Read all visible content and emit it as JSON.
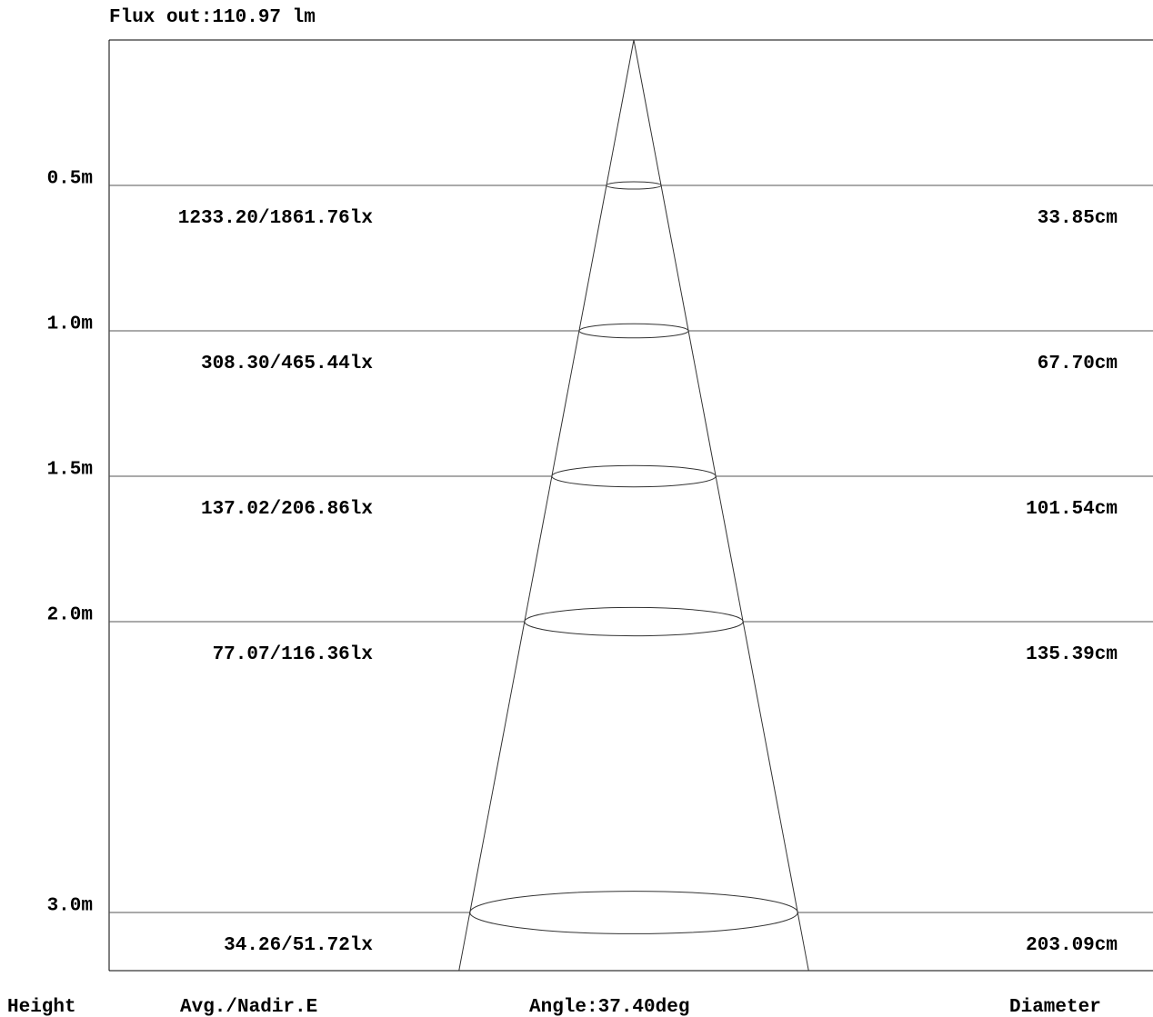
{
  "flux_label": "Flux out:110.97 lm",
  "footer": {
    "height_label": "Height",
    "illuminance_label": "Avg./Nadir.E",
    "angle_label": "Angle:37.40deg",
    "diameter_label": "Diameter"
  },
  "beam_angle_deg": 37.4,
  "levels": [
    {
      "height_m": 0.5,
      "height_label": "0.5m",
      "illuminance": "1233.20/1861.76lx",
      "diameter": "33.85cm",
      "diameter_cm": 33.85
    },
    {
      "height_m": 1.0,
      "height_label": "1.0m",
      "illuminance": "308.30/465.44lx",
      "diameter": "67.70cm",
      "diameter_cm": 67.7
    },
    {
      "height_m": 1.5,
      "height_label": "1.5m",
      "illuminance": "137.02/206.86lx",
      "diameter": "101.54cm",
      "diameter_cm": 101.54
    },
    {
      "height_m": 2.0,
      "height_label": "2.0m",
      "illuminance": "77.07/116.36lx",
      "diameter": "135.39cm",
      "diameter_cm": 135.39
    },
    {
      "height_m": 3.0,
      "height_label": "3.0m",
      "illuminance": "34.26/51.72lx",
      "diameter": "203.09cm",
      "diameter_cm": 203.09
    }
  ]
}
